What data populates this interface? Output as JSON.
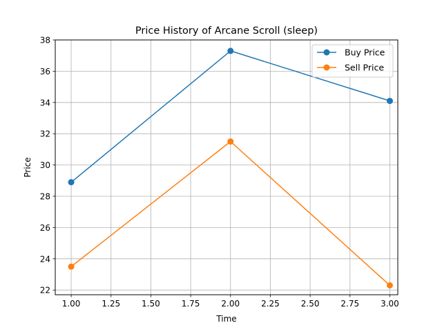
{
  "chart_data": {
    "type": "line",
    "title": "Price History of Arcane Scroll (sleep)",
    "xlabel": "Time",
    "ylabel": "Price",
    "xlim": [
      0.9,
      3.05
    ],
    "ylim": [
      21.7,
      38.0
    ],
    "xticks": [
      1.0,
      1.25,
      1.5,
      1.75,
      2.0,
      2.25,
      2.5,
      2.75,
      3.0
    ],
    "xtick_labels": [
      "1.00",
      "1.25",
      "1.50",
      "1.75",
      "2.00",
      "2.25",
      "2.50",
      "2.75",
      "3.00"
    ],
    "yticks": [
      22,
      24,
      26,
      28,
      30,
      32,
      34,
      36,
      38
    ],
    "ytick_labels": [
      "22",
      "24",
      "26",
      "28",
      "30",
      "32",
      "34",
      "36",
      "38"
    ],
    "grid": true,
    "legend_position": "top-right",
    "x": [
      1,
      2,
      3
    ],
    "series": [
      {
        "name": "Buy Price",
        "color": "#1f77b4",
        "marker": "circle",
        "values": [
          28.9,
          37.3,
          34.1
        ]
      },
      {
        "name": "Sell Price",
        "color": "#ff7f0e",
        "marker": "circle",
        "values": [
          23.5,
          31.5,
          22.3
        ]
      }
    ]
  }
}
